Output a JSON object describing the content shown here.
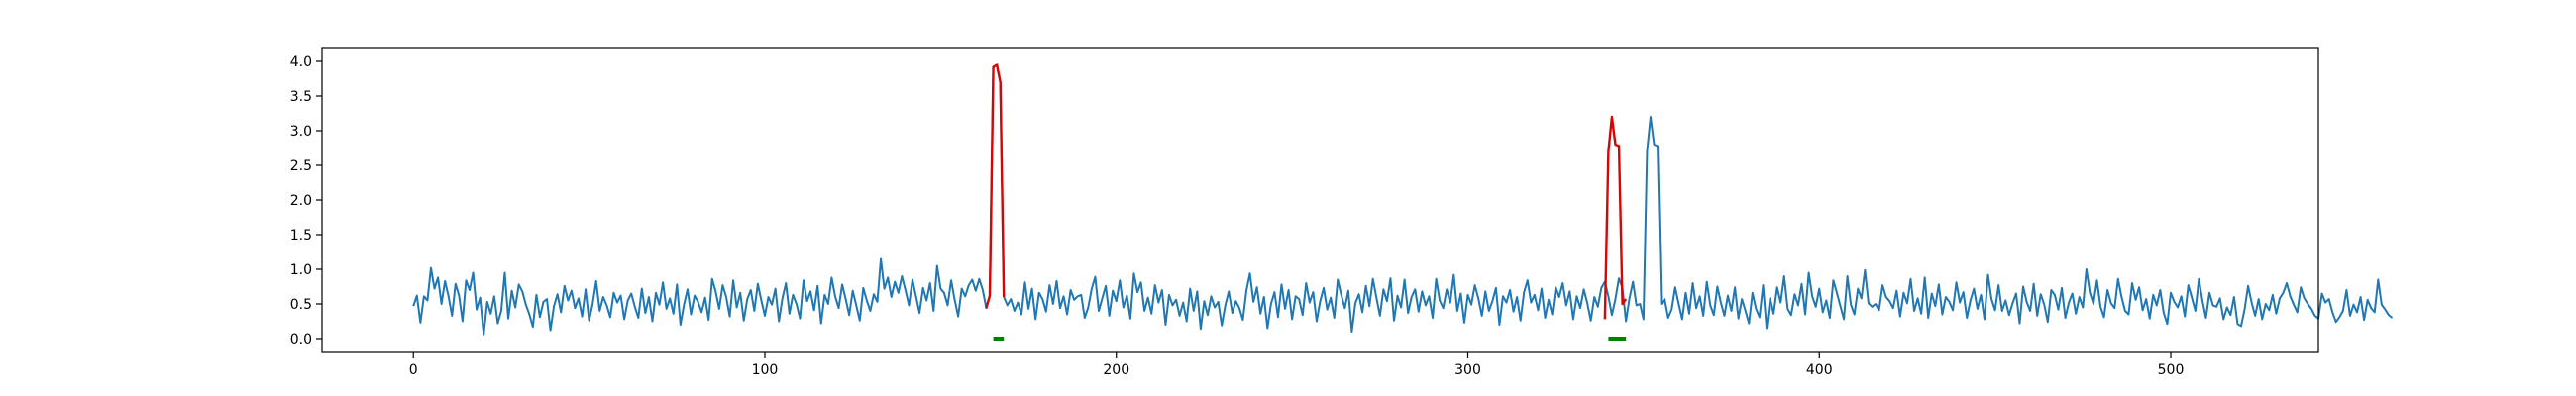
{
  "chart_data": {
    "type": "line",
    "title": "",
    "xlabel": "",
    "ylabel": "",
    "xlim": [
      -26,
      542
    ],
    "ylim": [
      -0.2,
      4.2
    ],
    "grid": false,
    "legend": "none",
    "x_ticks": [
      0,
      100,
      200,
      300,
      400,
      500
    ],
    "x_tick_labels": [
      "0",
      "100",
      "200",
      "300",
      "400",
      "500"
    ],
    "y_ticks": [
      0.0,
      0.5,
      1.0,
      1.5,
      2.0,
      2.5,
      3.0,
      3.5,
      4.0
    ],
    "y_tick_labels": [
      "0.0",
      "0.5",
      "1.0",
      "1.5",
      "2.0",
      "2.5",
      "3.0",
      "3.5",
      "4.0"
    ],
    "colors": {
      "signal": "#1f77b4",
      "anomaly": "#e00000",
      "marker": "#008000"
    },
    "series": [
      {
        "role": "signal",
        "x_start": 0,
        "x_step": 1,
        "values": [
          0.47,
          0.62,
          0.23,
          0.61,
          0.55,
          1.02,
          0.72,
          0.88,
          0.5,
          0.83,
          0.61,
          0.33,
          0.79,
          0.62,
          0.25,
          0.84,
          0.7,
          0.95,
          0.42,
          0.59,
          0.06,
          0.53,
          0.36,
          0.61,
          0.22,
          0.4,
          0.95,
          0.29,
          0.69,
          0.45,
          0.78,
          0.68,
          0.49,
          0.35,
          0.17,
          0.63,
          0.31,
          0.53,
          0.57,
          0.12,
          0.47,
          0.64,
          0.38,
          0.76,
          0.55,
          0.69,
          0.44,
          0.58,
          0.32,
          0.71,
          0.26,
          0.5,
          0.83,
          0.4,
          0.6,
          0.48,
          0.31,
          0.66,
          0.52,
          0.62,
          0.28,
          0.55,
          0.65,
          0.46,
          0.3,
          0.72,
          0.37,
          0.6,
          0.25,
          0.66,
          0.49,
          0.81,
          0.43,
          0.58,
          0.36,
          0.78,
          0.2,
          0.49,
          0.71,
          0.35,
          0.62,
          0.53,
          0.38,
          0.59,
          0.27,
          0.86,
          0.68,
          0.43,
          0.77,
          0.6,
          0.32,
          0.84,
          0.45,
          0.66,
          0.26,
          0.57,
          0.7,
          0.4,
          0.79,
          0.55,
          0.33,
          0.6,
          0.49,
          0.72,
          0.25,
          0.58,
          0.8,
          0.36,
          0.63,
          0.5,
          0.29,
          0.84,
          0.54,
          0.68,
          0.41,
          0.76,
          0.22,
          0.63,
          0.5,
          0.88,
          0.61,
          0.44,
          0.78,
          0.57,
          0.34,
          0.69,
          0.48,
          0.26,
          0.73,
          0.55,
          0.4,
          0.64,
          0.53,
          1.15,
          0.72,
          0.88,
          0.6,
          0.82,
          0.66,
          0.9,
          0.7,
          0.48,
          0.85,
          0.61,
          0.37,
          0.73,
          0.55,
          0.8,
          0.4,
          1.05,
          0.72,
          0.66,
          0.48,
          0.84,
          0.56,
          0.32,
          0.72,
          0.61,
          0.77,
          0.85,
          0.69,
          0.86,
          0.7,
          0.44,
          0.62,
          3.92,
          3.95,
          3.7,
          0.6,
          0.48,
          0.57,
          0.4,
          0.52,
          0.35,
          0.81,
          0.43,
          0.72,
          0.28,
          0.66,
          0.57,
          0.39,
          0.77,
          0.5,
          0.83,
          0.44,
          0.61,
          0.35,
          0.7,
          0.56,
          0.61,
          0.63,
          0.3,
          0.45,
          0.72,
          0.89,
          0.4,
          0.58,
          0.76,
          0.33,
          0.69,
          0.54,
          0.84,
          0.45,
          0.62,
          0.29,
          0.94,
          0.67,
          0.81,
          0.4,
          0.59,
          0.36,
          0.77,
          0.52,
          0.7,
          0.2,
          0.63,
          0.48,
          0.56,
          0.33,
          0.52,
          0.25,
          0.72,
          0.4,
          0.68,
          0.14,
          0.54,
          0.34,
          0.61,
          0.45,
          0.53,
          0.19,
          0.48,
          0.68,
          0.37,
          0.54,
          0.44,
          0.27,
          0.69,
          0.94,
          0.53,
          0.74,
          0.36,
          0.6,
          0.15,
          0.5,
          0.67,
          0.31,
          0.78,
          0.43,
          0.7,
          0.28,
          0.61,
          0.57,
          0.34,
          0.8,
          0.52,
          0.67,
          0.25,
          0.54,
          0.73,
          0.42,
          0.59,
          0.3,
          0.85,
          0.63,
          0.44,
          0.69,
          0.1,
          0.51,
          0.64,
          0.38,
          0.76,
          0.47,
          0.86,
          0.59,
          0.33,
          0.71,
          0.54,
          0.87,
          0.26,
          0.62,
          0.45,
          0.85,
          0.37,
          0.6,
          0.71,
          0.39,
          0.68,
          0.48,
          0.61,
          0.3,
          0.86,
          0.55,
          0.44,
          0.71,
          0.52,
          0.92,
          0.4,
          0.65,
          0.23,
          0.63,
          0.49,
          0.77,
          0.58,
          0.33,
          0.68,
          0.4,
          0.54,
          0.73,
          0.2,
          0.61,
          0.52,
          0.7,
          0.39,
          0.6,
          0.26,
          0.67,
          0.84,
          0.52,
          0.63,
          0.41,
          0.72,
          0.3,
          0.56,
          0.35,
          0.74,
          0.6,
          0.8,
          0.48,
          0.68,
          0.28,
          0.61,
          0.44,
          0.71,
          0.51,
          0.26,
          0.6,
          0.46,
          0.73,
          0.82,
          0.61,
          0.34,
          0.57,
          0.87,
          0.73,
          0.25,
          0.58,
          0.82,
          0.48,
          0.5,
          0.28,
          2.7,
          3.2,
          2.8,
          2.78,
          0.5,
          0.57,
          0.3,
          0.42,
          0.74,
          0.5,
          0.28,
          0.66,
          0.36,
          0.8,
          0.44,
          0.61,
          0.33,
          0.82,
          0.48,
          0.34,
          0.75,
          0.52,
          0.33,
          0.62,
          0.4,
          0.74,
          0.29,
          0.57,
          0.4,
          0.22,
          0.66,
          0.43,
          0.31,
          0.77,
          0.15,
          0.58,
          0.36,
          0.74,
          0.52,
          0.9,
          0.43,
          0.34,
          0.64,
          0.48,
          0.79,
          0.35,
          0.95,
          0.61,
          0.46,
          0.72,
          0.38,
          0.55,
          0.3,
          0.84,
          0.66,
          0.47,
          0.28,
          0.9,
          0.49,
          0.35,
          0.72,
          0.58,
          0.99,
          0.51,
          0.46,
          0.5,
          0.41,
          0.77,
          0.6,
          0.54,
          0.44,
          0.69,
          0.32,
          0.66,
          0.51,
          0.86,
          0.4,
          0.58,
          0.36,
          0.88,
          0.3,
          0.65,
          0.47,
          0.78,
          0.35,
          0.6,
          0.53,
          0.41,
          0.81,
          0.52,
          0.67,
          0.3,
          0.55,
          0.72,
          0.43,
          0.63,
          0.28,
          0.92,
          0.57,
          0.41,
          0.77,
          0.4,
          0.55,
          0.34,
          0.51,
          0.65,
          0.22,
          0.75,
          0.53,
          0.4,
          0.79,
          0.33,
          0.64,
          0.49,
          0.24,
          0.7,
          0.63,
          0.42,
          0.73,
          0.3,
          0.52,
          0.65,
          0.36,
          0.6,
          0.45,
          1.0,
          0.66,
          0.5,
          0.84,
          0.46,
          0.31,
          0.7,
          0.51,
          0.44,
          0.86,
          0.6,
          0.4,
          0.35,
          0.8,
          0.56,
          0.74,
          0.41,
          0.57,
          0.29,
          0.63,
          0.48,
          0.7,
          0.37,
          0.21,
          0.66,
          0.53,
          0.45,
          0.61,
          0.32,
          0.77,
          0.59,
          0.4,
          0.86,
          0.55,
          0.3,
          0.66,
          0.48,
          0.46,
          0.58,
          0.28,
          0.45,
          0.34,
          0.6,
          0.21,
          0.18,
          0.42,
          0.76,
          0.52,
          0.33,
          0.57,
          0.28,
          0.5,
          0.41,
          0.63,
          0.36,
          0.58,
          0.66,
          0.8,
          0.61,
          0.49,
          0.38,
          0.74,
          0.58,
          0.5,
          0.43,
          0.33,
          0.29,
          0.65,
          0.52,
          0.57,
          0.38,
          0.24,
          0.31,
          0.4,
          0.7,
          0.33,
          0.49,
          0.38,
          0.6,
          0.27,
          0.56,
          0.44,
          0.38,
          0.85,
          0.49,
          0.42,
          0.34,
          0.3
        ]
      },
      {
        "role": "anomaly",
        "segments": [
          {
            "x": [
              163,
              164,
              165,
              166,
              167,
              168
            ],
            "values": [
              0.44,
              0.62,
              3.92,
              3.95,
              3.7,
              0.6
            ]
          },
          {
            "x": [
              339,
              340,
              341,
              342,
              343,
              344,
              345
            ],
            "values": [
              0.28,
              2.7,
              3.2,
              2.8,
              2.78,
              0.5,
              0.57
            ]
          }
        ]
      },
      {
        "role": "marker",
        "segments": [
          {
            "x": [
              165,
              166,
              167,
              168
            ],
            "values": [
              0.0,
              0.0,
              0.0,
              0.0
            ]
          },
          {
            "x": [
              340,
              341,
              342,
              343,
              344,
              345
            ],
            "values": [
              0.0,
              0.0,
              0.0,
              0.0,
              0.0,
              0.0
            ]
          }
        ]
      }
    ]
  }
}
